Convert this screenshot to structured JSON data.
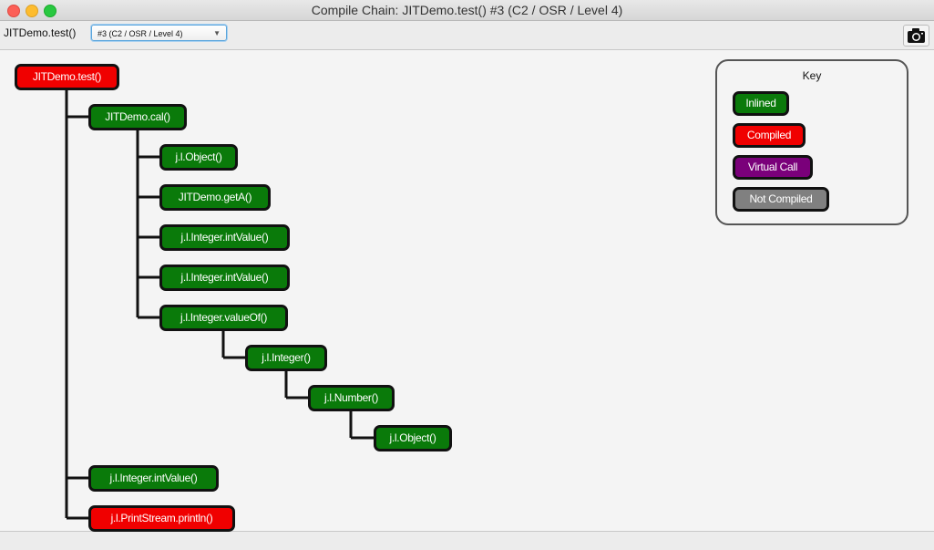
{
  "window": {
    "title": "Compile Chain: JITDemo.test() #3  (C2 / OSR / Level 4)"
  },
  "toolbar": {
    "method_label": "JITDemo.test()",
    "compilation_select": "#3  (C2 / OSR / Level 4)",
    "snapshot_icon": "camera-icon"
  },
  "colors": {
    "inlined": "#0a7a0a",
    "compiled": "#f00000",
    "virtual_call": "#7a007a",
    "not_compiled": "#808080"
  },
  "tree": {
    "nodes": [
      {
        "label": "JITDemo.test()",
        "status": "compiled"
      },
      {
        "label": "JITDemo.cal()",
        "status": "inlined"
      },
      {
        "label": "j.l.Object()",
        "status": "inlined"
      },
      {
        "label": "JITDemo.getA()",
        "status": "inlined"
      },
      {
        "label": "j.l.Integer.intValue()",
        "status": "inlined"
      },
      {
        "label": "j.l.Integer.intValue()",
        "status": "inlined"
      },
      {
        "label": "j.l.Integer.valueOf()",
        "status": "inlined"
      },
      {
        "label": "j.l.Integer()",
        "status": "inlined"
      },
      {
        "label": "j.l.Number()",
        "status": "inlined"
      },
      {
        "label": "j.l.Object()",
        "status": "inlined"
      },
      {
        "label": "j.l.Integer.intValue()",
        "status": "inlined"
      },
      {
        "label": "j.l.PrintStream.println()",
        "status": "compiled"
      }
    ]
  },
  "key": {
    "title": "Key",
    "items": [
      {
        "label": "Inlined"
      },
      {
        "label": "Compiled"
      },
      {
        "label": "Virtual Call"
      },
      {
        "label": "Not Compiled"
      }
    ]
  }
}
